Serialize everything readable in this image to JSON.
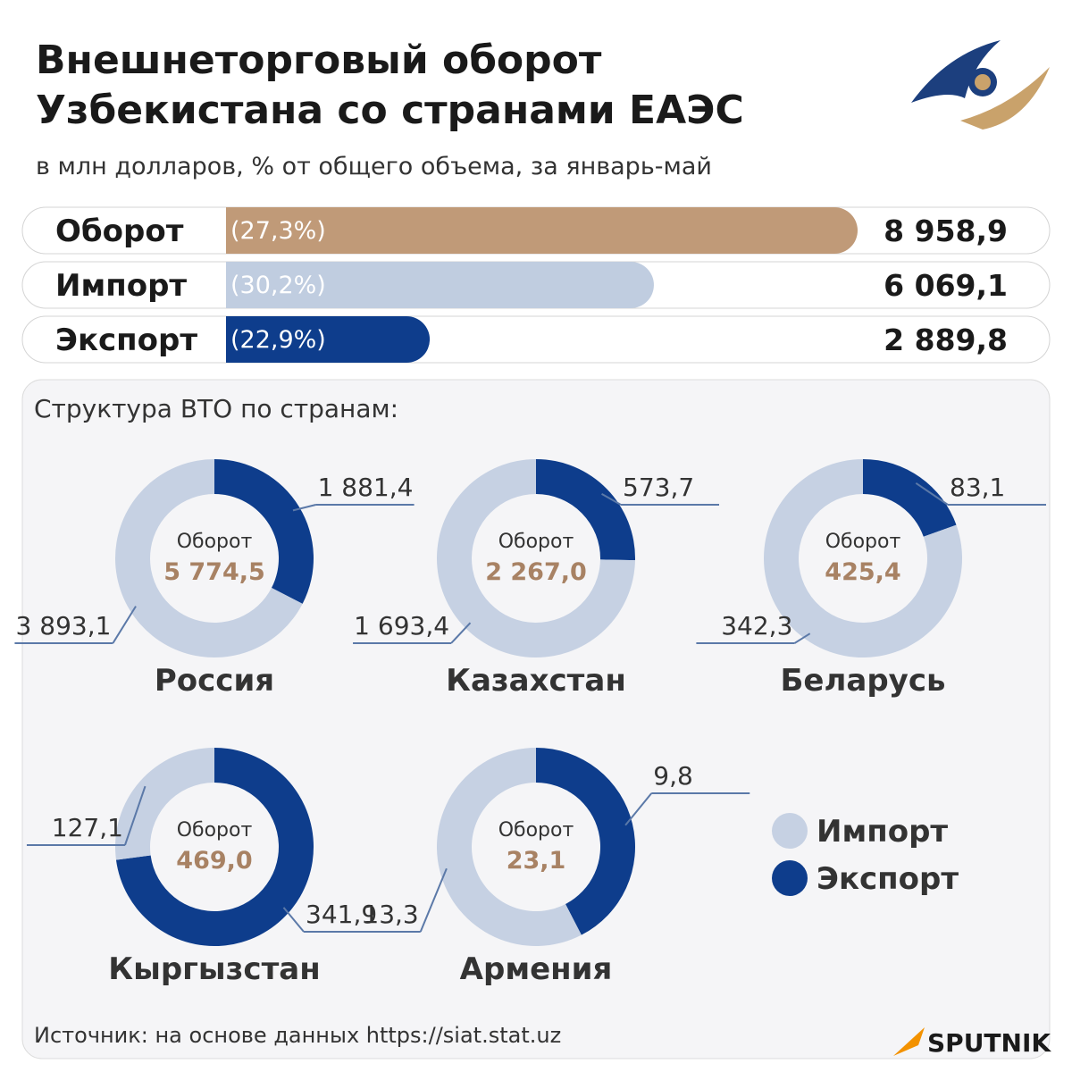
{
  "title": [
    "Внешнеторговый оборот",
    "Узбекистана со странами ЕАЭС"
  ],
  "subtitle": "в млн долларов, % от общего объема, за январь-май",
  "source": "Источник: на основе данных https://siat.stat.uz",
  "brand": "SPUTNIK",
  "chart_data": [
    {
      "type": "hbar",
      "categories": [
        "Оборот",
        "Импорт",
        "Экспорт"
      ],
      "values": [
        8958.9,
        6069.1,
        2889.8
      ],
      "value_labels": [
        "8 958,9",
        "6 069,1",
        "2 889,8"
      ],
      "shares": [
        27.3,
        30.2,
        22.9
      ],
      "share_labels": [
        "(27,3%)",
        "(30,2%)",
        "(22,9%)"
      ],
      "colors": [
        "#c09a78",
        "#c0cde0",
        "#0e3d8c"
      ]
    },
    {
      "type": "donut",
      "title": "Структура ВТО по странам:",
      "categories": [
        "Импорт",
        "Экспорт"
      ],
      "colors": [
        "#c6d1e3",
        "#0e3d8c"
      ],
      "center_label": "Оборот",
      "charts": [
        {
          "name": "Россия",
          "total": 5774.5,
          "total_label": "5 774,5",
          "values": [
            3893.1,
            1881.4
          ],
          "value_labels": [
            "3 893,1",
            "1 881,4"
          ]
        },
        {
          "name": "Казахстан",
          "total": 2267.0,
          "total_label": "2 267,0",
          "values": [
            1693.4,
            573.7
          ],
          "value_labels": [
            "1 693,4",
            "573,7"
          ]
        },
        {
          "name": "Беларусь",
          "total": 425.4,
          "total_label": "425,4",
          "values": [
            342.3,
            83.1
          ],
          "value_labels": [
            "342,3",
            "83,1"
          ]
        },
        {
          "name": "Кыргызстан",
          "total": 469.0,
          "total_label": "469,0",
          "values": [
            127.1,
            341.9
          ],
          "value_labels": [
            "127,1",
            "341,9"
          ]
        },
        {
          "name": "Армения",
          "total": 23.1,
          "total_label": "23,1",
          "values": [
            13.3,
            9.8
          ],
          "value_labels": [
            "13,3",
            "9,8"
          ]
        }
      ]
    }
  ]
}
